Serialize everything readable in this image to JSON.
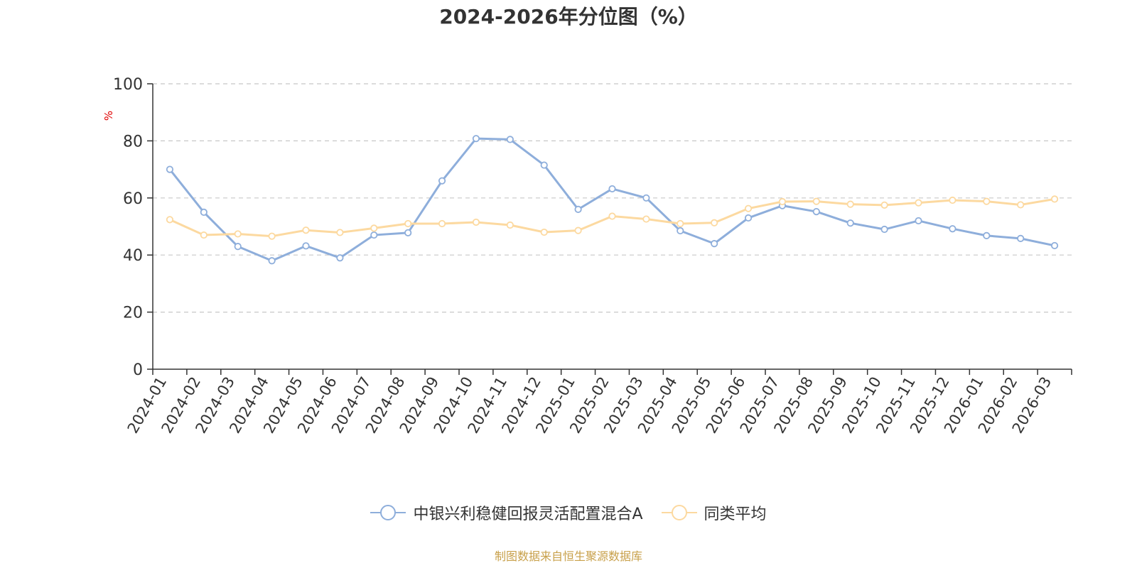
{
  "chart_data": {
    "type": "line",
    "title": "2024-2026年分位图（%）",
    "ylabel": "%",
    "xlabel": "",
    "ylim": [
      0,
      100
    ],
    "yticks": [
      0,
      20,
      40,
      60,
      80,
      100
    ],
    "grid": true,
    "legend_position": "bottom",
    "categories": [
      "2024-01",
      "2024-02",
      "2024-03",
      "2024-04",
      "2024-05",
      "2024-06",
      "2024-07",
      "2024-08",
      "2024-09",
      "2024-10",
      "2024-11",
      "2024-12",
      "2025-01",
      "2025-02",
      "2025-03",
      "2025-04",
      "2025-05",
      "2025-06",
      "2025-07",
      "2025-08",
      "2025-09",
      "2025-10",
      "2025-11",
      "2025-12",
      "2026-01",
      "2026-02",
      "2026-03"
    ],
    "series": [
      {
        "name": "中银兴利稳健回报灵活配置混合A",
        "color": "#8eaedb",
        "values": [
          70,
          55,
          43,
          38,
          43.2,
          39,
          47,
          47.8,
          66,
          80.8,
          80.5,
          71.5,
          56,
          63.2,
          60,
          48.5,
          44,
          53,
          57.3,
          55.2,
          51.2,
          49,
          52,
          49.2,
          46.8,
          45.8,
          43.3
        ]
      },
      {
        "name": "同类平均",
        "color": "#fcd9a0",
        "values": [
          52.4,
          47,
          47.4,
          46.6,
          48.7,
          47.9,
          49.4,
          51,
          51,
          51.5,
          50.5,
          48,
          48.6,
          53.6,
          52.6,
          51,
          51.3,
          56.3,
          58.7,
          58.8,
          57.8,
          57.5,
          58.3,
          59.2,
          58.8,
          57.6,
          59.6
        ]
      }
    ]
  },
  "source_text": "制图数据来自恒生聚源数据库",
  "colors": {
    "axis": "#333333",
    "grid": "#c8c8c8",
    "ylabel": "#e00000",
    "source": "#c8a04a"
  }
}
